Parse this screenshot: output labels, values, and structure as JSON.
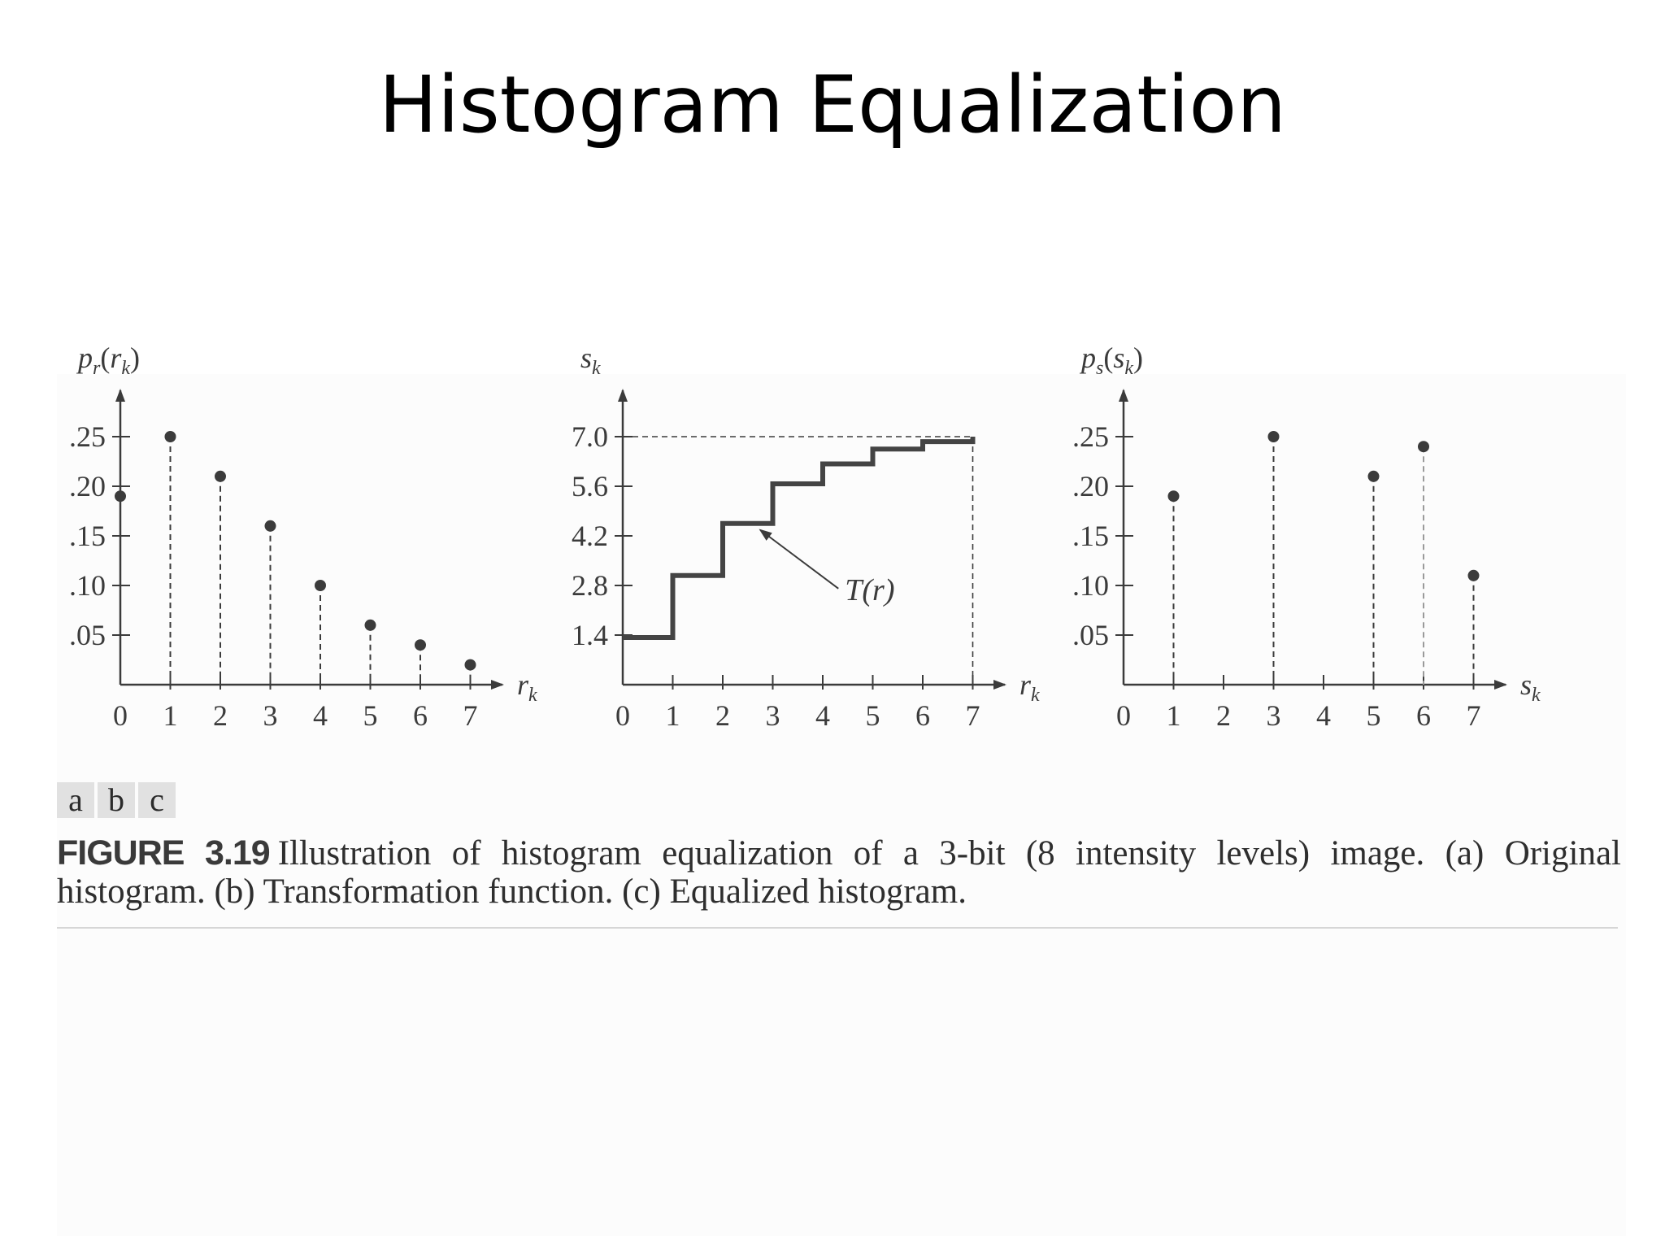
{
  "slide": {
    "title": "Histogram Equalization"
  },
  "figure": {
    "panel_letters": [
      "a",
      "b",
      "c"
    ],
    "caption_label": "FIGURE 3.19",
    "caption_text": "Illustration of histogram equalization of a 3-bit (8 intensity levels) image. (a) Original histogram. (b) Transformation function. (c) Equalized histogram."
  },
  "colors": {
    "ink": "#3b3b3b",
    "step_line": "#444444",
    "stem_gray": "#9a9a9a"
  },
  "chart_data": [
    {
      "type": "scatter",
      "id": "a",
      "xlabel": "r_k",
      "ylabel": "p_r(r_k)",
      "x": [
        0,
        1,
        2,
        3,
        4,
        5,
        6,
        7
      ],
      "y": [
        0.19,
        0.25,
        0.21,
        0.16,
        0.1,
        0.06,
        0.04,
        0.02
      ],
      "stems": true,
      "xticks": [
        "0",
        "1",
        "2",
        "3",
        "4",
        "5",
        "6",
        "7"
      ],
      "yticks": [
        0.05,
        0.1,
        0.15,
        0.2,
        0.25
      ],
      "ytick_labels": [
        ".05",
        ".10",
        ".15",
        ".20",
        ".25"
      ],
      "xlim": [
        0,
        7
      ],
      "ylim": [
        0,
        0.25
      ]
    },
    {
      "type": "line",
      "id": "b",
      "step": true,
      "xlabel": "r_k",
      "ylabel": "s_k",
      "x": [
        0,
        1,
        2,
        3,
        4,
        5,
        6,
        7
      ],
      "y": [
        1.33,
        3.08,
        4.55,
        5.67,
        6.23,
        6.65,
        6.86,
        7.0
      ],
      "annotation": "T(r)",
      "reference_line": 7.0,
      "xticks": [
        "0",
        "1",
        "2",
        "3",
        "4",
        "5",
        "6",
        "7"
      ],
      "yticks": [
        1.4,
        2.8,
        4.2,
        5.6,
        7.0
      ],
      "ytick_labels": [
        "1.4",
        "2.8",
        "4.2",
        "5.6",
        "7.0"
      ],
      "xlim": [
        0,
        7
      ],
      "ylim": [
        0,
        7
      ]
    },
    {
      "type": "scatter",
      "id": "c",
      "xlabel": "s_k",
      "ylabel": "p_s(s_k)",
      "x": [
        1,
        3,
        5,
        6,
        7
      ],
      "y": [
        0.19,
        0.25,
        0.21,
        0.24,
        0.11
      ],
      "stems": true,
      "xticks": [
        "0",
        "1",
        "2",
        "3",
        "4",
        "5",
        "6",
        "7"
      ],
      "yticks": [
        0.05,
        0.1,
        0.15,
        0.2,
        0.25
      ],
      "ytick_labels": [
        ".05",
        ".10",
        ".15",
        ".20",
        ".25"
      ],
      "xlim": [
        0,
        7
      ],
      "ylim": [
        0,
        0.25
      ]
    }
  ]
}
